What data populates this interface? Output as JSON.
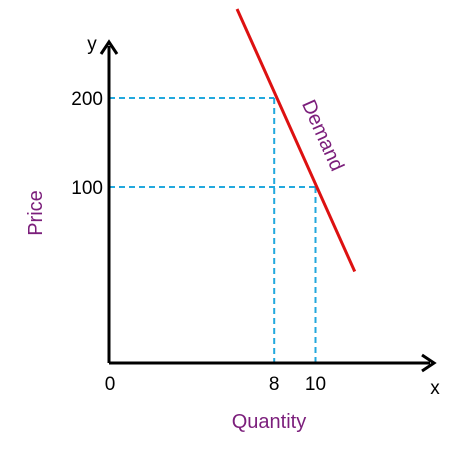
{
  "chart_data": {
    "type": "line",
    "xlabel": "Quantity",
    "ylabel": "Price",
    "x_axis_letter": "x",
    "y_axis_letter": "y",
    "origin_label": "0",
    "x_ticks": [
      "8",
      "10"
    ],
    "y_ticks": [
      "100",
      "200"
    ],
    "grid": false,
    "series": [
      {
        "name": "Demand",
        "color": "#dd1111",
        "points": [
          {
            "x": 6.2,
            "y": 300
          },
          {
            "x": 8,
            "y": 200
          },
          {
            "x": 10,
            "y": 100
          },
          {
            "x": 11.9,
            "y": 5
          }
        ]
      }
    ],
    "reference_points": [
      {
        "x": 8,
        "y": 200
      },
      {
        "x": 10,
        "y": 100
      }
    ],
    "colors": {
      "axis": "#000000",
      "guides": "#22a8dd",
      "titles": "#7b1e7b"
    }
  }
}
